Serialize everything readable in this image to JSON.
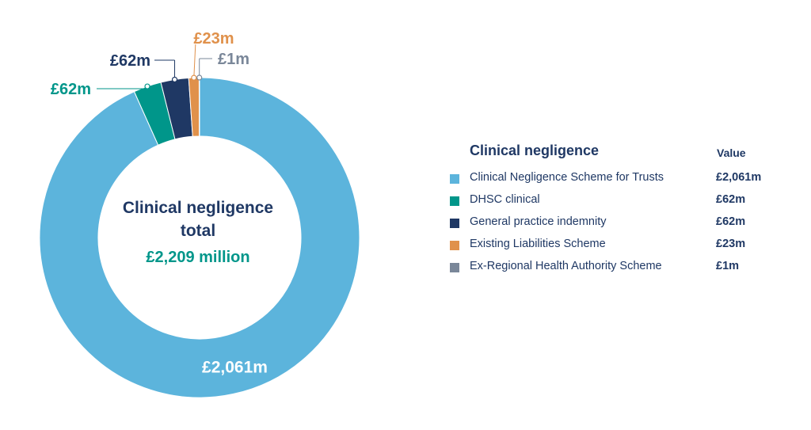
{
  "chart_data": {
    "type": "pie",
    "donut": true,
    "categories": [
      "Clinical Negligence Scheme for Trusts",
      "DHSC clinical",
      "General practice indemnity",
      "Existing Liabilities Scheme",
      "Ex-Regional Health Authority Scheme"
    ],
    "values": [
      2061,
      62,
      62,
      23,
      1
    ],
    "value_labels": [
      "£2,061m",
      "£62m",
      "£62m",
      "£23m",
      "£1m"
    ],
    "colors": [
      "#5cb4dc",
      "#00968a",
      "#1f3864",
      "#e0914b",
      "#7a8799"
    ],
    "center_title": "Clinical negligence total",
    "center_value": "£2,209 million",
    "legend_title": "Clinical negligence",
    "legend_value_header": "Value",
    "legend_position": "right"
  }
}
